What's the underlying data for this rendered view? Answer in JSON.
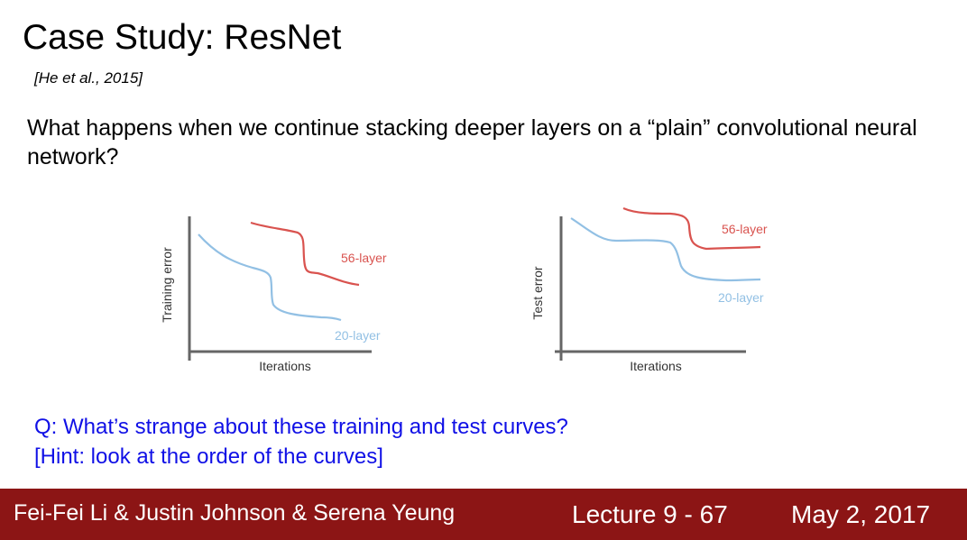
{
  "slide": {
    "title": "Case Study: ResNet",
    "citation": "[He et al., 2015]",
    "question": "What happens when we continue stacking deeper layers on a “plain” convolutional neural network?",
    "q_line1": "Q: What’s strange about these training and test curves?",
    "q_line2": "[Hint: look at the order of the curves]"
  },
  "footer": {
    "authors": "Fei-Fei Li & Justin Johnson & Serena Yeung",
    "lecture": "Lecture 9 - 67",
    "date": "May 2, 2017"
  },
  "colors": {
    "series_56": "#d9534f",
    "series_20": "#92c0e4",
    "axis": "#666666",
    "footer_bg": "#8c1515",
    "question_text": "#1010e6"
  },
  "chart_data": [
    {
      "type": "line",
      "xlabel": "Iterations",
      "ylabel": "Training error",
      "ticks": "none",
      "series": [
        {
          "name": "56-layer",
          "color": "#d9534f"
        },
        {
          "name": "20-layer",
          "color": "#92c0e4"
        }
      ]
    },
    {
      "type": "line",
      "xlabel": "Iterations",
      "ylabel": "Test error",
      "ticks": "none",
      "series": [
        {
          "name": "56-layer",
          "color": "#d9534f"
        },
        {
          "name": "20-layer",
          "color": "#92c0e4"
        }
      ]
    }
  ]
}
